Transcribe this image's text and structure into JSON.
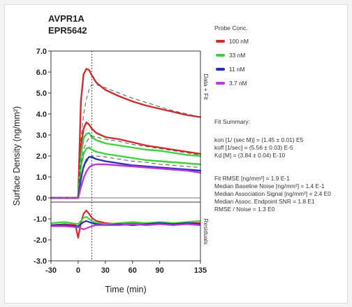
{
  "chart_data": {
    "type": "line",
    "title_lines": [
      "AVPR1A",
      "EPR5642"
    ],
    "xlabel": "Time (min)",
    "ylabel": "Surface Density (ng/mm²)",
    "right_label_top": "Data + Fit",
    "right_label_bottom": "Residuals",
    "xlim": [
      -30,
      135
    ],
    "ylim": [
      -3.0,
      7.0
    ],
    "x_ticks": [
      -30,
      0,
      30,
      60,
      90,
      135
    ],
    "y_ticks": [
      "7.0",
      "6.0",
      "5.0",
      "4.0",
      "3.0",
      "2.0",
      "1.0",
      "0.0",
      "-1.0",
      "-2.0",
      "-3.0"
    ],
    "y_tick_values": [
      7,
      6,
      5,
      4,
      3,
      2,
      1,
      0,
      -1,
      -2,
      -3
    ],
    "residual_divider_y": -0.2,
    "injection_end_x": 15,
    "legend_title": "Probe Conc.",
    "series": [
      {
        "name": "100 nM",
        "color": "#d42a2a",
        "x": [
          -30,
          -15,
          0,
          3,
          6,
          9,
          12,
          15,
          20,
          30,
          45,
          60,
          75,
          90,
          105,
          120,
          135
        ],
        "y": [
          0,
          0,
          0,
          4.6,
          5.9,
          6.15,
          6.1,
          5.85,
          5.5,
          5.15,
          4.85,
          4.6,
          4.4,
          4.25,
          4.1,
          3.95,
          3.85
        ]
      },
      {
        "name": "100 nM",
        "color": "#d42a2a",
        "x": [
          -30,
          -15,
          0,
          3,
          6,
          9,
          12,
          15,
          20,
          30,
          45,
          60,
          75,
          90,
          105,
          120,
          135
        ],
        "y": [
          0,
          0,
          0,
          2.4,
          3.3,
          3.6,
          3.5,
          3.3,
          3.1,
          2.9,
          2.8,
          2.65,
          2.5,
          2.4,
          2.3,
          2.2,
          2.1
        ]
      },
      {
        "name": "33 nM",
        "color": "#3fcf3f",
        "x": [
          -30,
          -15,
          0,
          3,
          6,
          9,
          12,
          15,
          20,
          30,
          45,
          60,
          75,
          90,
          105,
          120,
          135
        ],
        "y": [
          0,
          0,
          0,
          2.0,
          2.85,
          3.05,
          3.1,
          2.9,
          2.75,
          2.6,
          2.5,
          2.4,
          2.3,
          2.25,
          2.15,
          2.05,
          2.0
        ]
      },
      {
        "name": "33 nM",
        "color": "#3fcf3f",
        "x": [
          -30,
          -15,
          0,
          3,
          6,
          9,
          12,
          15,
          20,
          30,
          45,
          60,
          75,
          90,
          105,
          120,
          135
        ],
        "y": [
          0,
          0,
          0,
          1.5,
          2.1,
          2.35,
          2.4,
          2.3,
          2.2,
          2.1,
          2.0,
          1.9,
          1.8,
          1.75,
          1.7,
          1.65,
          1.6
        ]
      },
      {
        "name": "11 nM",
        "color": "#2430b8",
        "x": [
          -30,
          -15,
          0,
          3,
          6,
          9,
          12,
          15,
          20,
          30,
          45,
          60,
          75,
          90,
          105,
          120,
          135
        ],
        "y": [
          0,
          0,
          0,
          0.9,
          1.5,
          1.8,
          1.95,
          1.95,
          1.85,
          1.75,
          1.65,
          1.55,
          1.5,
          1.45,
          1.4,
          1.35,
          1.3
        ]
      },
      {
        "name": "3.7 nM",
        "color": "#b93ad6",
        "x": [
          -30,
          -15,
          0,
          3,
          6,
          9,
          12,
          15,
          20,
          30,
          45,
          60,
          75,
          90,
          105,
          120,
          135
        ],
        "y": [
          0,
          0,
          0,
          0.5,
          0.95,
          1.25,
          1.45,
          1.55,
          1.6,
          1.6,
          1.55,
          1.5,
          1.45,
          1.4,
          1.35,
          1.3,
          1.2
        ]
      }
    ],
    "fit_curves": [
      {
        "x": [
          -30,
          0,
          3,
          6,
          9,
          12,
          15,
          20,
          30,
          45,
          60,
          75,
          90,
          105,
          120,
          135
        ],
        "y": [
          0,
          0,
          2.7,
          4.0,
          4.7,
          5.15,
          5.4,
          5.4,
          5.25,
          5.0,
          4.75,
          4.55,
          4.35,
          4.15,
          4.0,
          3.85
        ]
      },
      {
        "x": [
          -30,
          0,
          3,
          6,
          9,
          12,
          15,
          20,
          30,
          45,
          60,
          75,
          90,
          105,
          120,
          135
        ],
        "y": [
          0,
          0,
          1.6,
          2.3,
          2.65,
          2.85,
          2.95,
          2.9,
          2.8,
          2.7,
          2.55,
          2.45,
          2.35,
          2.25,
          2.15,
          2.05
        ]
      },
      {
        "x": [
          -30,
          0,
          3,
          6,
          9,
          12,
          15,
          20,
          30,
          45,
          60,
          75,
          90,
          105,
          120,
          135
        ],
        "y": [
          0,
          0,
          0.9,
          1.4,
          1.7,
          1.9,
          2.0,
          2.0,
          1.95,
          1.85,
          1.75,
          1.7,
          1.6,
          1.55,
          1.5,
          1.45
        ]
      }
    ],
    "residuals": [
      {
        "color": "#d42a2a",
        "x": [
          -30,
          -15,
          -3,
          0,
          3,
          6,
          9,
          12,
          15,
          20,
          30,
          45,
          60,
          75,
          90,
          105,
          120,
          135
        ],
        "y": [
          -1.3,
          -1.25,
          -1.3,
          -1.9,
          -1.2,
          -0.75,
          -0.6,
          -0.75,
          -0.95,
          -1.1,
          -1.2,
          -1.25,
          -1.2,
          -1.25,
          -1.2,
          -1.25,
          -1.2,
          -1.2
        ]
      },
      {
        "color": "#3fcf3f",
        "x": [
          -30,
          -15,
          0,
          3,
          6,
          9,
          12,
          15,
          20,
          30,
          45,
          60,
          75,
          90,
          105,
          120,
          135
        ],
        "y": [
          -1.2,
          -1.15,
          -1.25,
          -1.1,
          -0.95,
          -0.9,
          -1.0,
          -1.1,
          -1.2,
          -1.25,
          -1.2,
          -1.15,
          -1.2,
          -1.15,
          -1.2,
          -1.15,
          -1.1
        ]
      },
      {
        "color": "#2430b8",
        "x": [
          -30,
          -15,
          0,
          3,
          6,
          9,
          12,
          15,
          20,
          30,
          45,
          60,
          75,
          90,
          105,
          120,
          135
        ],
        "y": [
          -1.3,
          -1.3,
          -1.35,
          -1.25,
          -1.15,
          -1.1,
          -1.15,
          -1.2,
          -1.25,
          -1.3,
          -1.25,
          -1.3,
          -1.25,
          -1.2,
          -1.25,
          -1.2,
          -1.25
        ]
      },
      {
        "color": "#b93ad6",
        "x": [
          -30,
          -15,
          0,
          3,
          6,
          9,
          12,
          15,
          20,
          30,
          45,
          60,
          75,
          90,
          105,
          120,
          135
        ],
        "y": [
          -1.35,
          -1.35,
          -1.4,
          -1.45,
          -1.5,
          -1.45,
          -1.4,
          -1.35,
          -1.3,
          -1.3,
          -1.3,
          -1.25,
          -1.3,
          -1.25,
          -1.3,
          -1.25,
          -1.3
        ]
      }
    ]
  },
  "legend": {
    "title": "Probe Conc.",
    "items": [
      {
        "label": "100 nM",
        "color": "#d42a2a"
      },
      {
        "label": "33 nM",
        "color": "#3fcf3f"
      },
      {
        "label": "11 nM",
        "color": "#2430b8"
      },
      {
        "label": "3.7 nM",
        "color": "#b93ad6"
      }
    ]
  },
  "fit_summary": {
    "title": "Fit Summary:",
    "kinetics": [
      "kon  [1/ (sec M)]  =  (1.45 ± 0.01) E5",
      "koff  [1/sec]  =  (5.56 ± 0.03) E-5",
      "Kd  [M]  =  (3.84 ± 0.04) E-10"
    ],
    "stats": [
      "Fit RMSE [ng/mm²]  =  1.9 E-1",
      "Median Baseline Noise [ng/mm²]  =  1.4 E-1",
      "Median Association Signal [ng/mm²]  =  2.4 E0",
      "Median Assoc. Endpoint SNR  =  1.8 E1",
      "RMSE / Noise  =  1.3 E0"
    ]
  }
}
